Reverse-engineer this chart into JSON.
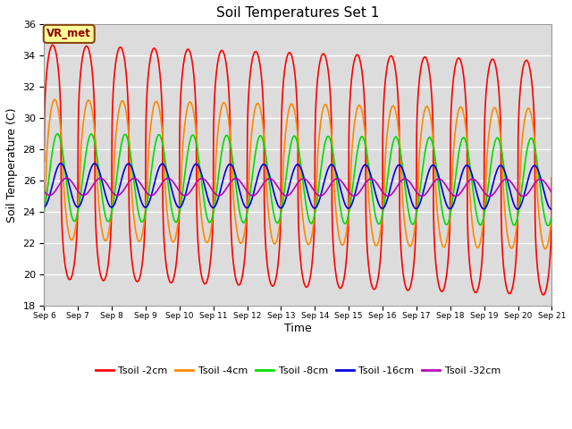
{
  "title": "Soil Temperatures Set 1",
  "xlabel": "Time",
  "ylabel": "Soil Temperature (C)",
  "ylim": [
    18,
    36
  ],
  "yticks": [
    18,
    20,
    22,
    24,
    26,
    28,
    30,
    32,
    34,
    36
  ],
  "start_day": 6,
  "end_day": 21,
  "num_days": 15,
  "lines": [
    {
      "label": "Tsoil -2cm",
      "color": "#FF0000",
      "amplitude": 7.5,
      "mean": 27.2,
      "phase_shift": 0.0,
      "mean_trend": -0.07,
      "amp_trend": 0.0,
      "sharpness": 3.0
    },
    {
      "label": "Tsoil -4cm",
      "color": "#FF8800",
      "amplitude": 4.5,
      "mean": 26.7,
      "phase_shift": 0.12,
      "mean_trend": -0.04,
      "amp_trend": 0.0,
      "sharpness": 1.5
    },
    {
      "label": "Tsoil -8cm",
      "color": "#00DD00",
      "amplitude": 2.8,
      "mean": 26.2,
      "phase_shift": 0.28,
      "mean_trend": -0.02,
      "amp_trend": 0.0,
      "sharpness": 1.0
    },
    {
      "label": "Tsoil -16cm",
      "color": "#0000DD",
      "amplitude": 1.4,
      "mean": 25.7,
      "phase_shift": 0.48,
      "mean_trend": -0.01,
      "amp_trend": 0.0,
      "sharpness": 1.0
    },
    {
      "label": "Tsoil -32cm",
      "color": "#BB00BB",
      "amplitude": 0.55,
      "mean": 25.6,
      "phase_shift": 0.82,
      "mean_trend": -0.005,
      "amp_trend": 0.0,
      "sharpness": 1.0
    }
  ],
  "bg_color": "#DCDCDC",
  "fig_bg_color": "#FFFFFF",
  "grid_color": "#FFFFFF",
  "annotation_text": "VR_met",
  "annotation_bg": "#FFFF99",
  "annotation_border": "#8B4513"
}
